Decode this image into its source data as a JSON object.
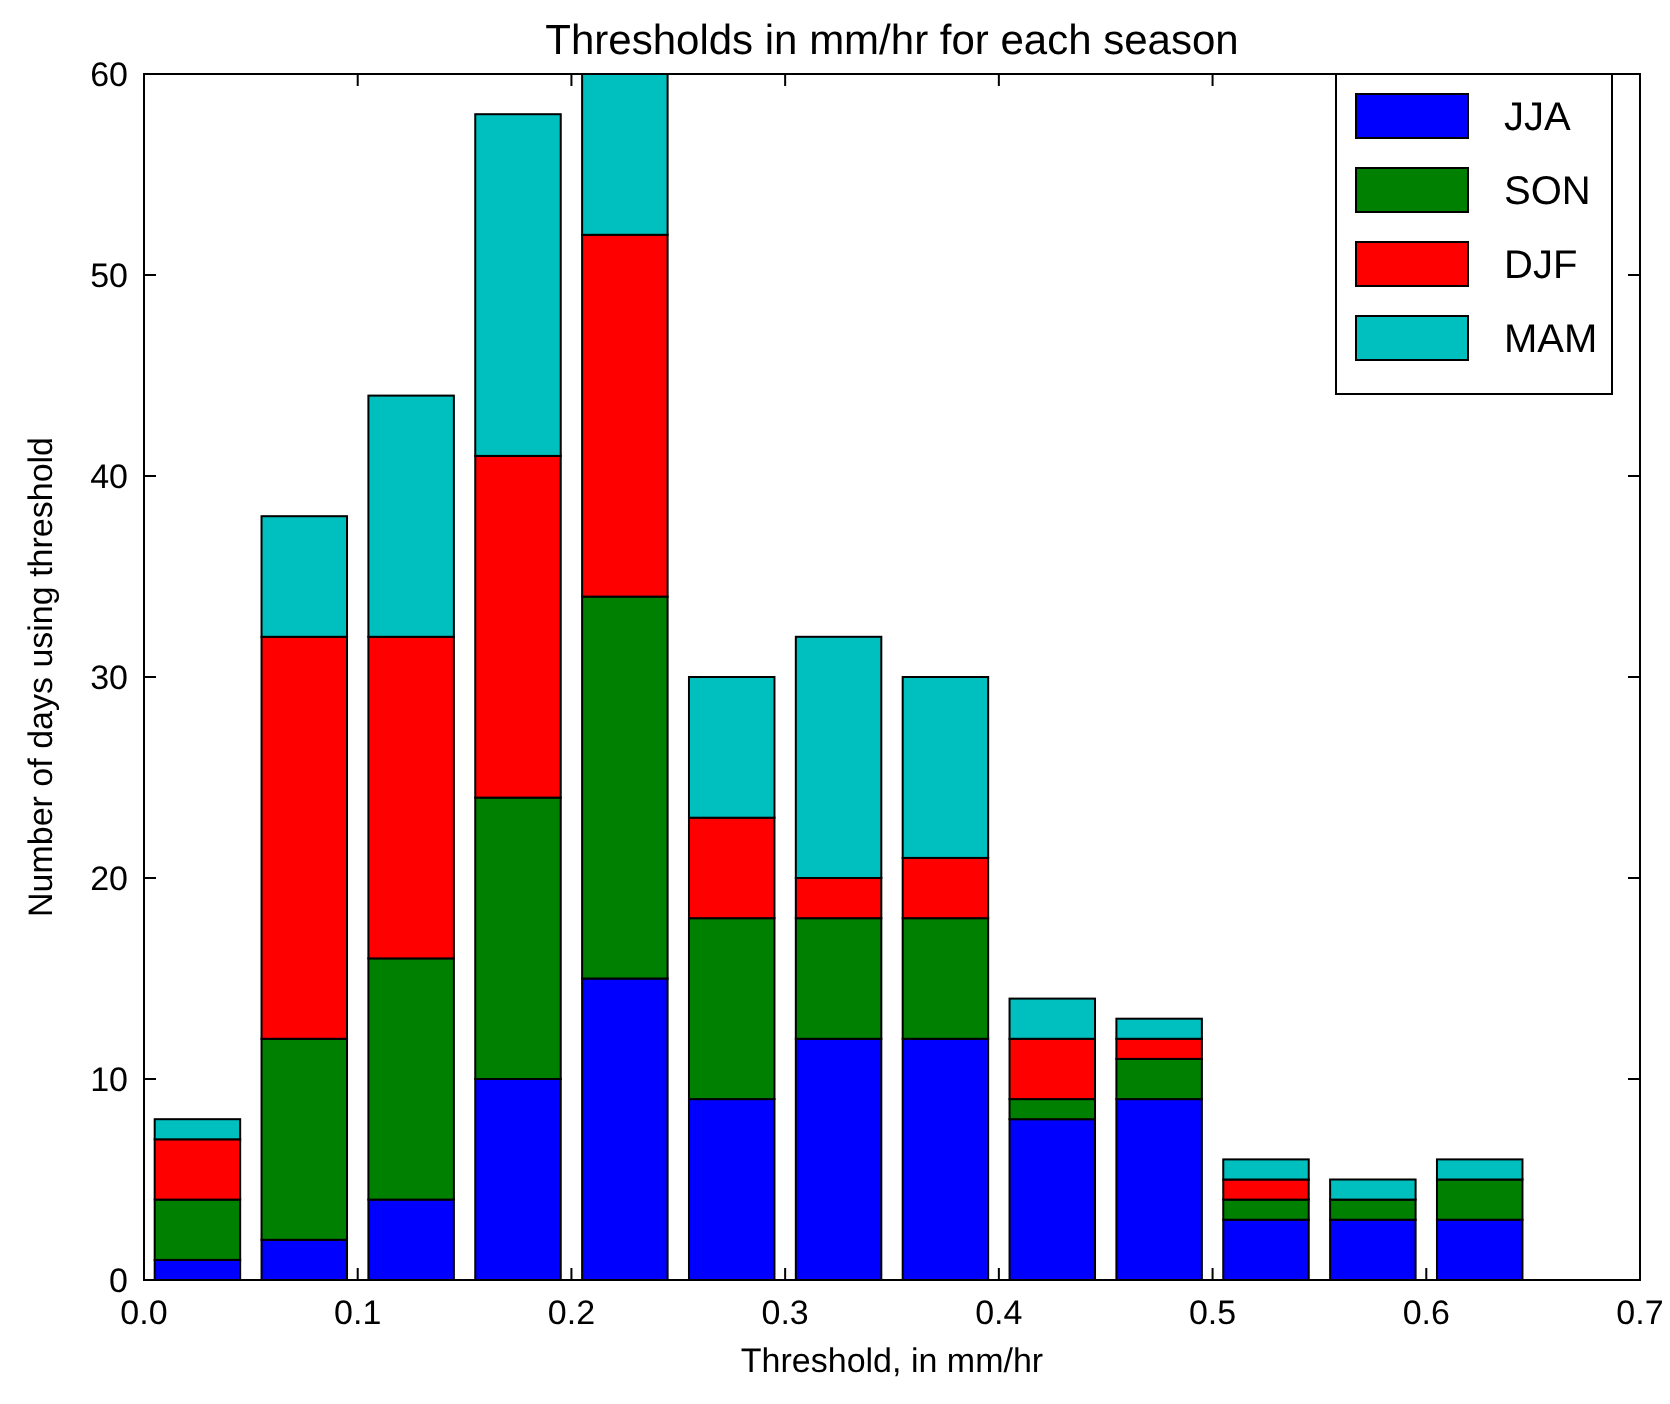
{
  "chart_data": {
    "type": "bar",
    "title": "Thresholds in mm/hr for each season",
    "xlabel": "Threshold, in mm/hr",
    "ylabel": "Number of days using threshold",
    "x": [
      0.025,
      0.075,
      0.125,
      0.175,
      0.225,
      0.275,
      0.325,
      0.375,
      0.425,
      0.475,
      0.525,
      0.575,
      0.625
    ],
    "stacked": true,
    "series": [
      {
        "name": "JJA",
        "color": "#0000ff",
        "values": [
          1,
          2,
          4,
          10,
          15,
          9,
          12,
          12,
          8,
          9,
          3,
          3,
          3
        ]
      },
      {
        "name": "SON",
        "color": "#008000",
        "values": [
          3,
          10,
          12,
          14,
          19,
          9,
          6,
          6,
          1,
          2,
          1,
          1,
          2
        ]
      },
      {
        "name": "DJF",
        "color": "#ff0000",
        "values": [
          3,
          20,
          16,
          17,
          18,
          5,
          2,
          3,
          3,
          1,
          1,
          0,
          0
        ]
      },
      {
        "name": "MAM",
        "color": "#00bfbf",
        "values": [
          1,
          6,
          12,
          17,
          8,
          7,
          12,
          9,
          2,
          1,
          1,
          1,
          1
        ]
      }
    ],
    "xlim": [
      0,
      0.7
    ],
    "xticks": [
      {
        "value": 0,
        "label": "0.0"
      },
      0.1,
      0.2,
      0.3,
      0.4,
      0.5,
      0.6,
      0.7
    ],
    "ylim": [
      0,
      60
    ],
    "yticks": [
      0,
      10,
      20,
      30,
      40,
      50,
      60
    ],
    "legend": "top right"
  }
}
